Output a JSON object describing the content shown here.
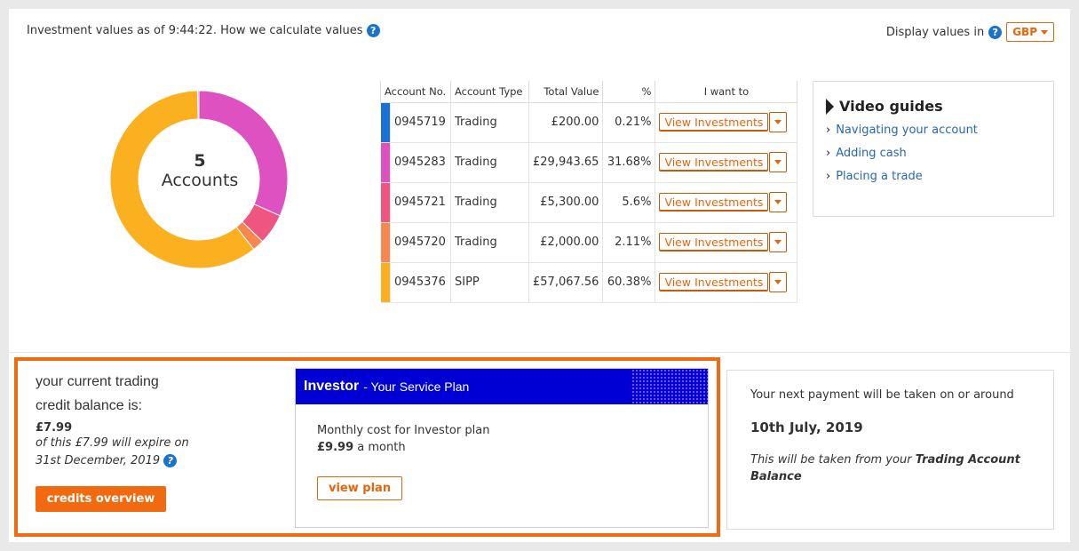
{
  "header": {
    "values_text": "Investment values as of 9:44:22. How we calculate values",
    "display_text": "Display values in",
    "currency": "GBP"
  },
  "summary": {
    "count": "5",
    "label": "Accounts"
  },
  "table": {
    "headers": [
      "Account No.",
      "Account Type",
      "Total Value",
      "%",
      "I want to"
    ],
    "rows": [
      {
        "color": "#1a73d4",
        "account": "0945719",
        "type": "Trading",
        "value": "£200.00",
        "pct": "0.21%",
        "action": "View Investments",
        "pct_num": 0.21
      },
      {
        "color": "#dd52c0",
        "account": "0945283",
        "type": "Trading",
        "value": "£29,943.65",
        "pct": "31.68%",
        "action": "View Investments",
        "pct_num": 31.68
      },
      {
        "color": "#ee5580",
        "account": "0945721",
        "type": "Trading",
        "value": "£5,300.00",
        "pct": "5.6%",
        "action": "View Investments",
        "pct_num": 5.6
      },
      {
        "color": "#f5874f",
        "account": "0945720",
        "type": "Trading",
        "value": "£2,000.00",
        "pct": "2.11%",
        "action": "View Investments",
        "pct_num": 2.11
      },
      {
        "color": "#fbb020",
        "account": "0945376",
        "type": "SIPP",
        "value": "£57,067.56",
        "pct": "60.38%",
        "action": "View Investments",
        "pct_num": 60.38
      }
    ]
  },
  "video_guides": {
    "title": "Video guides",
    "links": [
      "Navigating your account",
      "Adding cash",
      "Placing a trade"
    ]
  },
  "credit": {
    "line1": "your current trading",
    "line2": "credit balance is:",
    "amount": "£7.99",
    "expire_line1": "of this £7.99 will expire on",
    "expire_line2": "31st December, 2019",
    "button": "credits overview"
  },
  "plan": {
    "name": "Investor",
    "subtitle": "- Your Service Plan",
    "cost_label": "Monthly cost for Investor plan",
    "cost_amount": "£9.99",
    "cost_period": "a month",
    "button": "view plan"
  },
  "payment": {
    "line1": "Your next payment will be taken on or around",
    "date": "10th July, 2019",
    "note_prefix": "This will be taken from your",
    "note_bold": "Trading Account Balance"
  }
}
